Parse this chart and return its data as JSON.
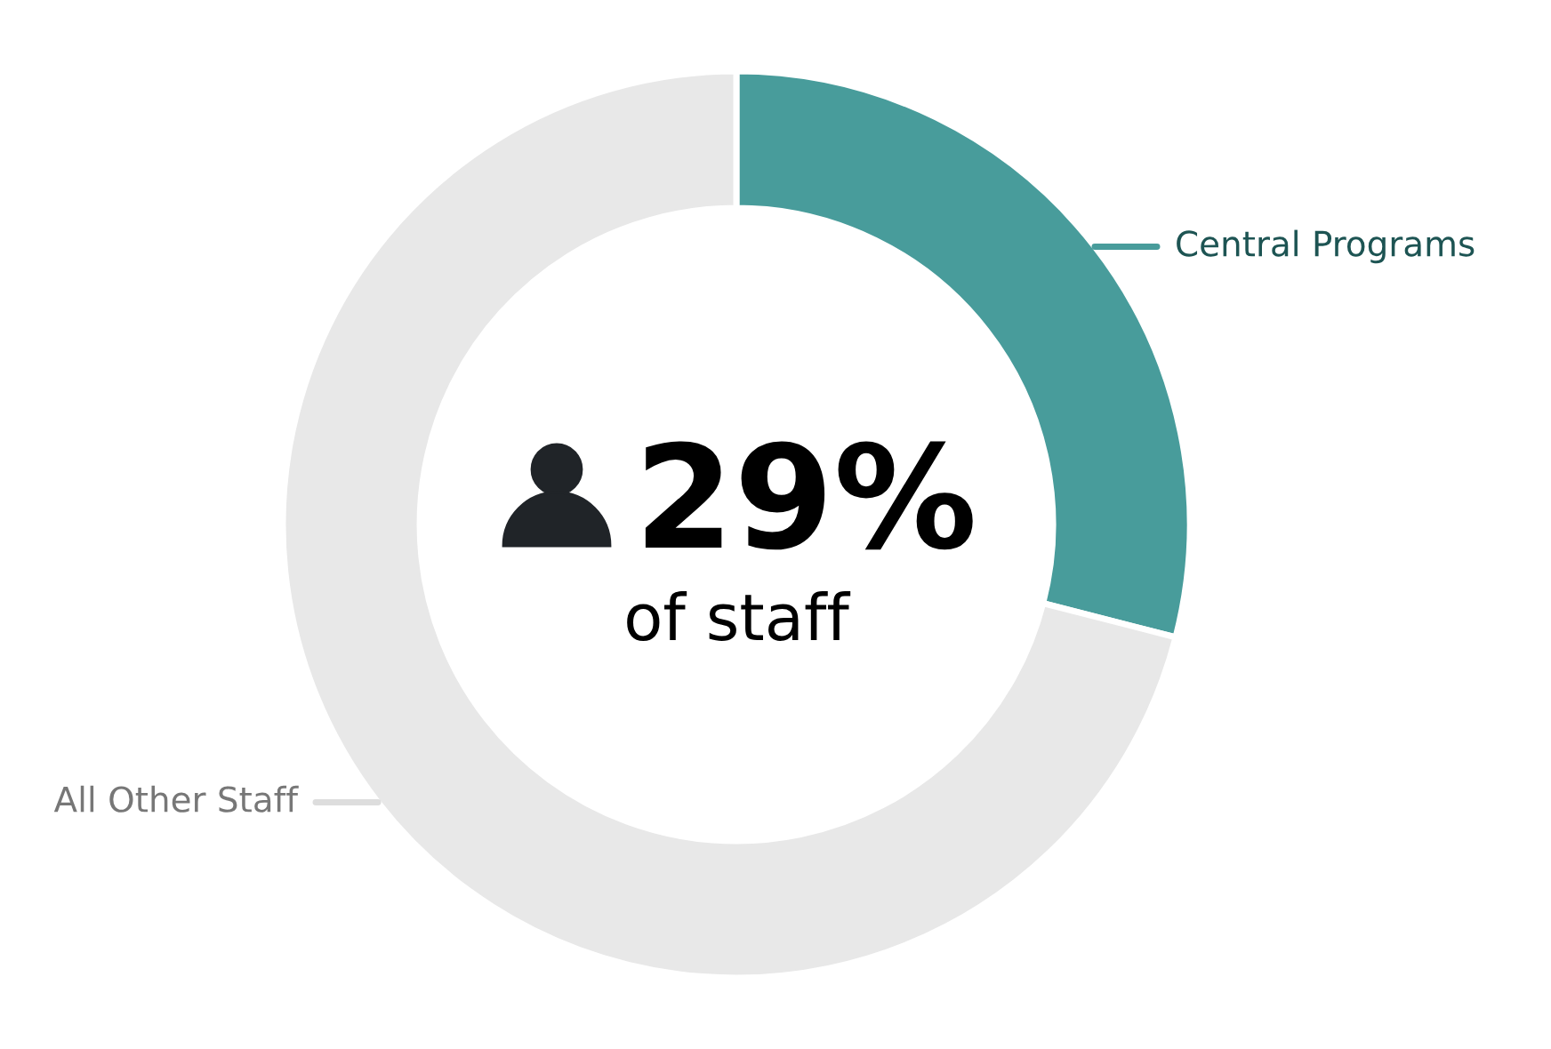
{
  "chart_data": {
    "type": "donut",
    "categories": [
      "Central Programs",
      "All Other Staff"
    ],
    "values": [
      29,
      71
    ],
    "colors": [
      "#489c9b",
      "#e8e8e8"
    ],
    "annotations": [
      "29%",
      "of staff"
    ],
    "legend": false
  }
}
